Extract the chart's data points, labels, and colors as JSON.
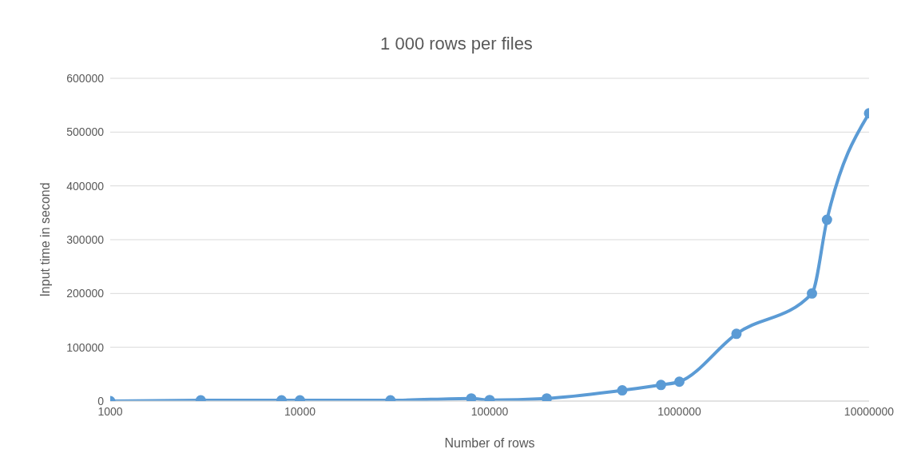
{
  "chart_data": {
    "type": "line",
    "title": "1 000 rows per files",
    "xlabel": "Number of rows",
    "ylabel": "Input time in second",
    "log": "x",
    "x": [
      1000,
      3000,
      8000,
      10000,
      30000,
      80000,
      100000,
      200000,
      500000,
      800000,
      1000000,
      2000000,
      5000000,
      6000000,
      10000000
    ],
    "series": [
      {
        "color": "#5b9bd5",
        "values": [
          0,
          1500,
          1500,
          1500,
          1500,
          5000,
          2000,
          5000,
          20000,
          30000,
          36000,
          125000,
          200000,
          337000,
          535000
        ]
      }
    ],
    "xlim": [
      1000,
      10000000
    ],
    "xticks": [
      1000,
      10000,
      100000,
      1000000,
      10000000
    ],
    "ylim": [
      0,
      600000
    ],
    "yticks": [
      0,
      100000,
      200000,
      300000,
      400000,
      500000,
      600000
    ],
    "grid": "y",
    "legend": false,
    "marker": "circle",
    "line_style": "solid"
  }
}
